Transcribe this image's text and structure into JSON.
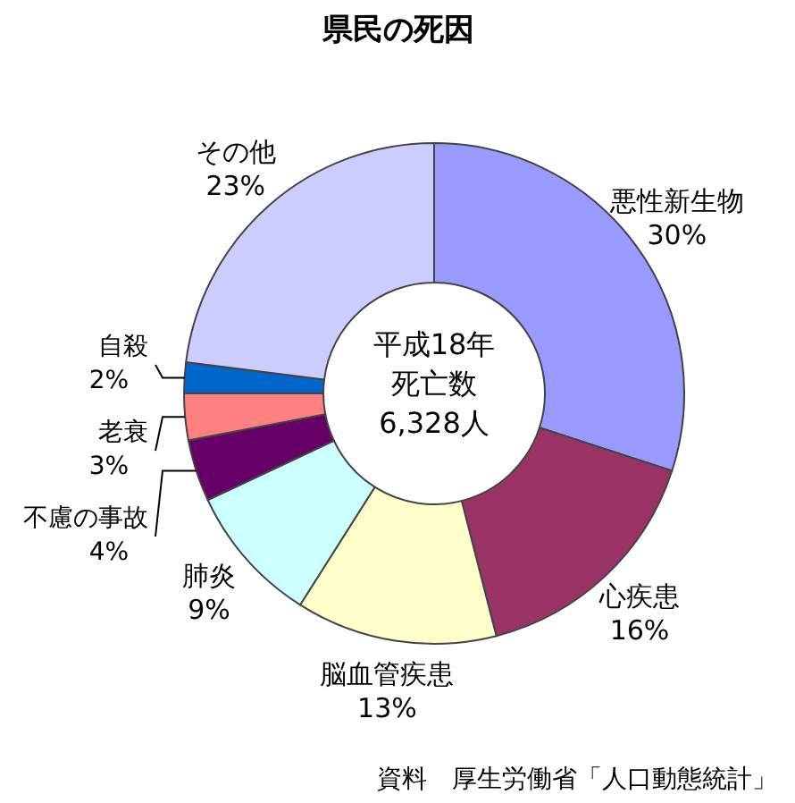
{
  "chart_data": {
    "type": "donut",
    "title": "県民の死因",
    "categories": [
      "悪性新生物",
      "心疾患",
      "脳血管疾患",
      "肺炎",
      "不慮の事故",
      "老衰",
      "自殺",
      "その他"
    ],
    "values": [
      30,
      16,
      13,
      9,
      4,
      3,
      2,
      23
    ],
    "value_labels": [
      "30%",
      "16%",
      "13%",
      "9%",
      "4%",
      "3%",
      "2%",
      "23%"
    ],
    "colors": [
      "#9999ff",
      "#993366",
      "#ffffcc",
      "#ccffff",
      "#660066",
      "#ff8080",
      "#0066cc",
      "#ccccff"
    ],
    "annotations": [
      "平成18年",
      "死亡数",
      "6,328人",
      "資料　厚生労働省「人口動態統計」"
    ]
  }
}
